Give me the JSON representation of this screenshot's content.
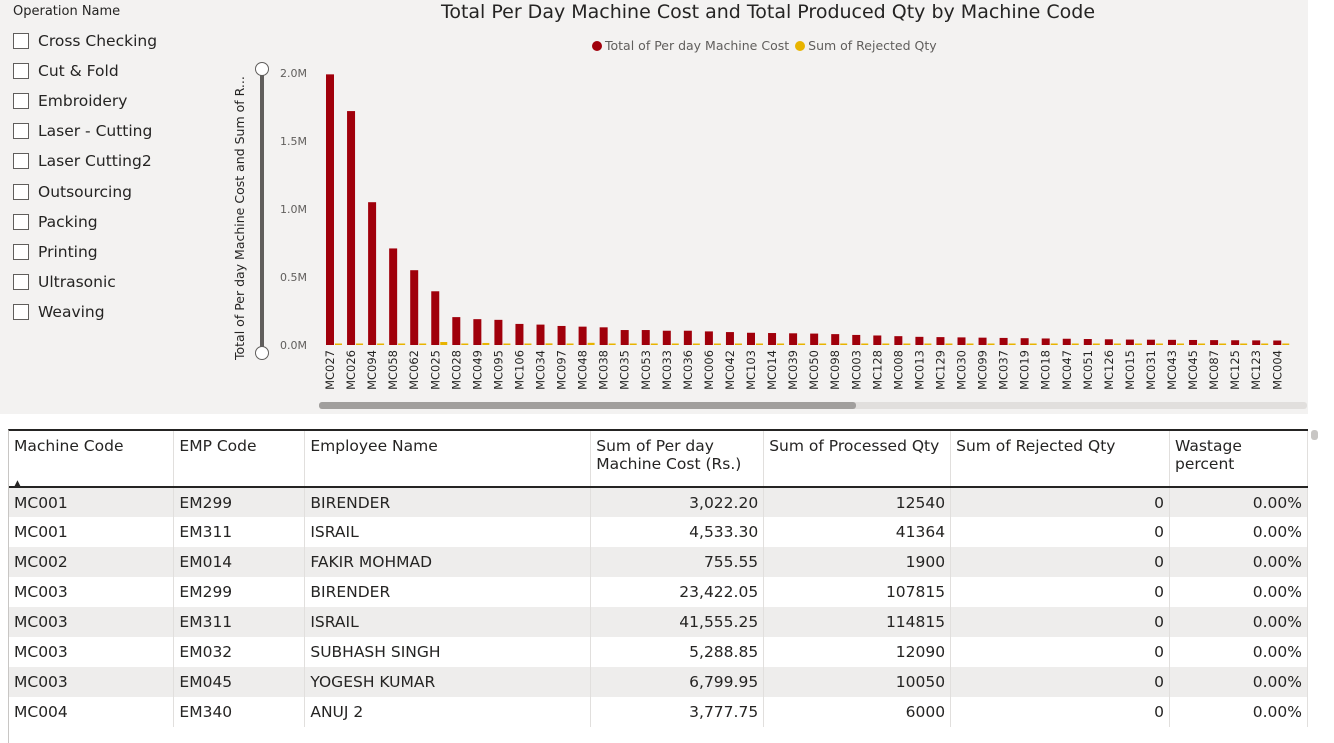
{
  "slicer": {
    "title": "Operation Name",
    "items": [
      "Cross Checking",
      "Cut & Fold",
      "Embroidery",
      "Laser - Cutting",
      "Laser Cutting2",
      "Outsourcing",
      "Packing",
      "Printing",
      "Ultrasonic",
      "Weaving"
    ]
  },
  "chart": {
    "title": "Total Per Day Machine Cost and Total Produced Qty by Machine Code",
    "legend": [
      {
        "label": "Total of Per day Machine Cost",
        "color": "#a0000b"
      },
      {
        "label": "Sum of Rejected Qty",
        "color": "#e8b400"
      }
    ],
    "ylabel": "Total of Per day Machine Cost and Sum of R...",
    "yticks": [
      "2.0M",
      "1.5M",
      "1.0M",
      "0.5M",
      "0.0M"
    ]
  },
  "chart_data": {
    "type": "bar",
    "title": "Total Per Day Machine Cost and Total Produced Qty by Machine Code",
    "xlabel": "",
    "ylabel": "Total of Per day Machine Cost and Sum of R...",
    "ylim": [
      0,
      2000000
    ],
    "grid": false,
    "legend_position": "top-center",
    "categories": [
      "MC027",
      "MC026",
      "MC094",
      "MC058",
      "MC062",
      "MC025",
      "MC028",
      "MC049",
      "MC095",
      "MC106",
      "MC034",
      "MC097",
      "MC048",
      "MC038",
      "MC035",
      "MC053",
      "MC033",
      "MC036",
      "MC006",
      "MC042",
      "MC103",
      "MC014",
      "MC039",
      "MC050",
      "MC098",
      "MC003",
      "MC128",
      "MC008",
      "MC013",
      "MC129",
      "MC030",
      "MC099",
      "MC037",
      "MC019",
      "MC018",
      "MC047",
      "MC051",
      "MC126",
      "MC015",
      "MC031",
      "MC043",
      "MC045",
      "MC087",
      "MC125",
      "MC123",
      "MC004"
    ],
    "series": [
      {
        "name": "Total of Per day Machine Cost",
        "color": "#a0000b",
        "values": [
          1990000,
          1720000,
          1050000,
          710000,
          550000,
          395000,
          205000,
          190000,
          185000,
          155000,
          150000,
          140000,
          135000,
          130000,
          110000,
          110000,
          105000,
          105000,
          100000,
          95000,
          90000,
          88000,
          86000,
          84000,
          80000,
          74000,
          70000,
          65000,
          60000,
          58000,
          56000,
          54000,
          52000,
          50000,
          48000,
          46000,
          44000,
          42000,
          40000,
          39000,
          38000,
          37000,
          36000,
          35000,
          34000,
          33000
        ]
      },
      {
        "name": "Sum of Rejected Qty",
        "color": "#e8b400",
        "values": [
          3000,
          2000,
          4000,
          2000,
          2000,
          22000,
          6000,
          15000,
          9000,
          2000,
          12000,
          5000,
          16000,
          8000,
          2000,
          4000,
          6000,
          3000,
          4000,
          2000,
          2000,
          2000,
          9000,
          2000,
          2000,
          5000,
          2000,
          4000,
          3000,
          2000,
          3000,
          2000,
          2000,
          2000,
          2000,
          2000,
          4000,
          2000,
          2000,
          2000,
          2000,
          6000,
          2000,
          2000,
          2000,
          2000
        ]
      }
    ]
  },
  "table": {
    "headers": [
      "Machine Code",
      "EMP Code",
      "Employee Name",
      "Sum of Per day Machine Cost (Rs.)",
      "Sum of Processed Qty",
      "Sum of Rejected Qty",
      "Wastage percent"
    ],
    "rows": [
      [
        "MC001",
        "EM299",
        "BIRENDER",
        "3,022.20",
        "12540",
        "0",
        "0.00%"
      ],
      [
        "MC001",
        "EM311",
        "ISRAIL",
        "4,533.30",
        "41364",
        "0",
        "0.00%"
      ],
      [
        "MC002",
        "EM014",
        "FAKIR MOHMAD",
        "755.55",
        "1900",
        "0",
        "0.00%"
      ],
      [
        "MC003",
        "EM299",
        "BIRENDER",
        "23,422.05",
        "107815",
        "0",
        "0.00%"
      ],
      [
        "MC003",
        "EM311",
        "ISRAIL",
        "41,555.25",
        "114815",
        "0",
        "0.00%"
      ],
      [
        "MC003",
        "EM032",
        "SUBHASH SINGH",
        "5,288.85",
        "12090",
        "0",
        "0.00%"
      ],
      [
        "MC003",
        "EM045",
        "YOGESH KUMAR",
        "6,799.95",
        "10050",
        "0",
        "0.00%"
      ],
      [
        "MC004",
        "EM340",
        "ANUJ 2",
        "3,777.75",
        "6000",
        "0",
        "0.00%"
      ]
    ]
  }
}
